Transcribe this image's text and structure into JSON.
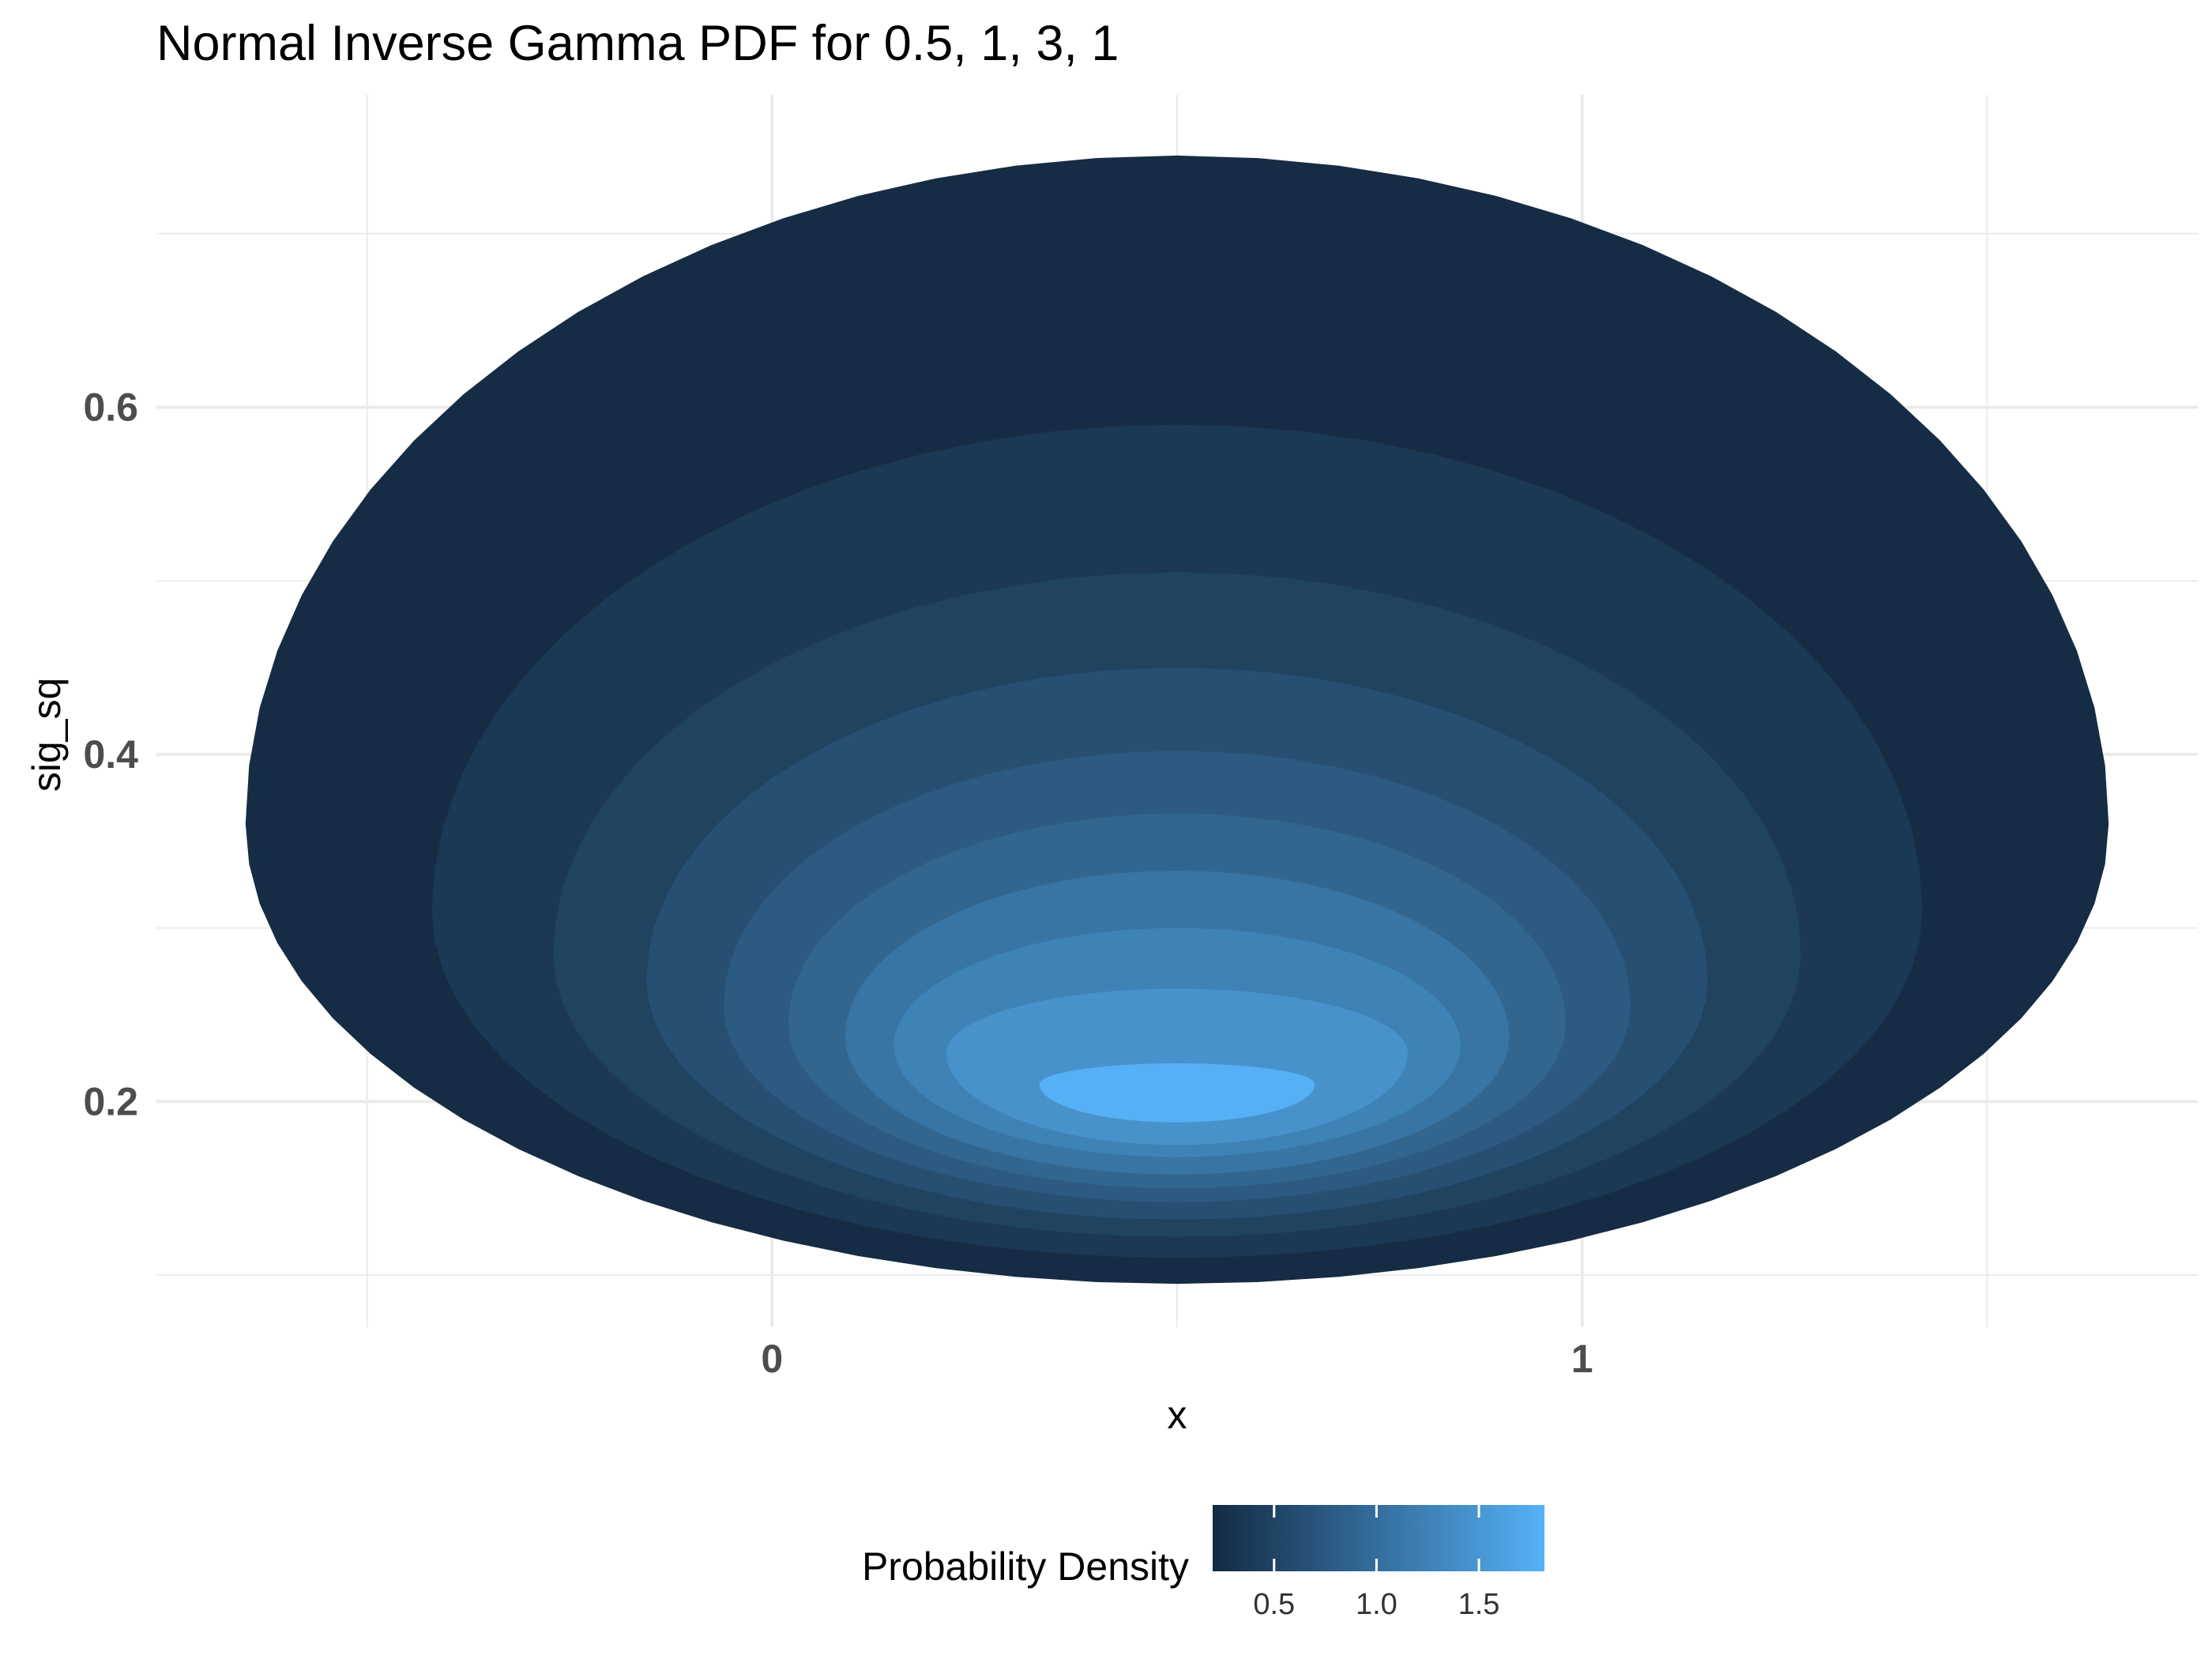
{
  "chart_data": {
    "type": "filled-contour",
    "title": "Normal Inverse Gamma PDF for 0.5, 1, 3, 1",
    "xlabel": "x",
    "ylabel": "sig_sq",
    "x_ticks": [
      0,
      1
    ],
    "x_tick_labels": [
      "0",
      "1"
    ],
    "y_ticks": [
      0.2,
      0.4,
      0.6
    ],
    "y_tick_labels": [
      "0.2",
      "0.4",
      "0.6"
    ],
    "xlim": [
      -0.76,
      1.76
    ],
    "ylim": [
      0.07,
      0.78
    ],
    "grid": true,
    "legend": {
      "title": "Probability Density",
      "placement": "bottom",
      "ticks": [
        0.5,
        1.0,
        1.5
      ],
      "tick_labels": [
        "0.5",
        "1.0",
        "1.5"
      ],
      "range": [
        0.2,
        1.82
      ],
      "color_low": "#132B43",
      "color_high": "#56B1F7"
    },
    "contour_levels": [
      {
        "level": 0.1,
        "color": "#162c44",
        "cx": 0.5,
        "rx": 1.15,
        "top": 0.745,
        "bottom": 0.095,
        "yc": 0.36
      },
      {
        "level": 0.3,
        "color": "#1b3854",
        "cx": 0.5,
        "rx": 0.92,
        "top": 0.59,
        "bottom": 0.11,
        "yc": 0.31
      },
      {
        "level": 0.5,
        "color": "#204360",
        "cx": 0.5,
        "rx": 0.77,
        "top": 0.505,
        "bottom": 0.122,
        "yc": 0.285
      },
      {
        "level": 0.7,
        "color": "#274f72",
        "cx": 0.5,
        "rx": 0.655,
        "top": 0.45,
        "bottom": 0.132,
        "yc": 0.27
      },
      {
        "level": 0.9,
        "color": "#2c5a80",
        "cx": 0.5,
        "rx": 0.56,
        "top": 0.402,
        "bottom": 0.142,
        "yc": 0.255
      },
      {
        "level": 1.1,
        "color": "#32668e",
        "cx": 0.5,
        "rx": 0.48,
        "top": 0.366,
        "bottom": 0.15,
        "yc": 0.245
      },
      {
        "level": 1.3,
        "color": "#3874a4",
        "cx": 0.5,
        "rx": 0.41,
        "top": 0.333,
        "bottom": 0.158,
        "yc": 0.237
      },
      {
        "level": 1.5,
        "color": "#3e83b6",
        "cx": 0.5,
        "rx": 0.35,
        "top": 0.3,
        "bottom": 0.168,
        "yc": 0.232
      },
      {
        "level": 1.7,
        "color": "#4892cc",
        "cx": 0.5,
        "rx": 0.285,
        "top": 0.265,
        "bottom": 0.175,
        "yc": 0.228
      },
      {
        "level": 1.8,
        "color": "#56b0f5",
        "cx": 0.5,
        "rx": 0.17,
        "top": 0.222,
        "bottom": 0.188,
        "yc": 0.21
      }
    ]
  }
}
